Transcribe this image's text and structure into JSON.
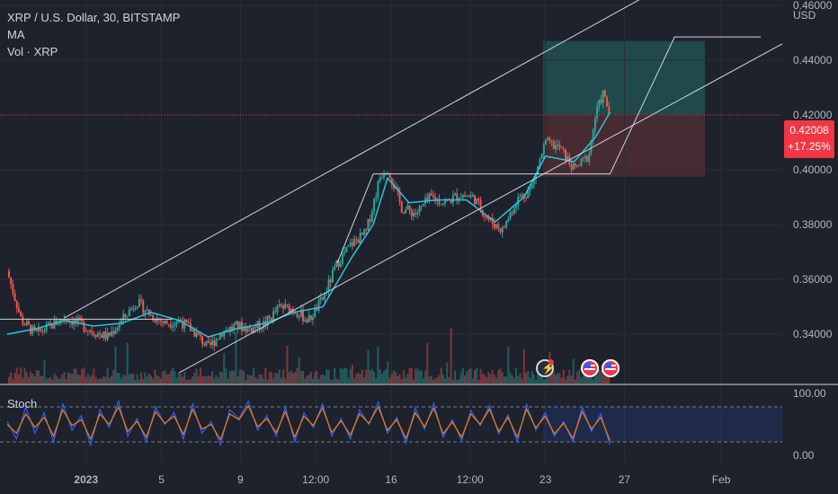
{
  "legend": {
    "symbol": "XRP / U.S. Dollar, 30, BITSTAMP",
    "ma": "MA",
    "volume": "Vol · XRP"
  },
  "currency": "USD",
  "price_tag": {
    "price": "0.42008",
    "change": "+17.25%"
  },
  "stoch": {
    "label": "Stoch",
    "upper": "100.00",
    "lower": "0.00"
  },
  "colors": {
    "background": "#1e222d",
    "price_line": "#f23645",
    "ma_line": "#26c6da",
    "up_candle": "#26a69a",
    "down_candle": "#ef5350",
    "stoch_k": "#2962ff",
    "stoch_d": "#f57c00",
    "profit_zone": "#1f4e4e",
    "loss_zone": "#4a2c33"
  },
  "chart_data": {
    "type": "line",
    "title": "XRP / U.S. Dollar, 30, BITSTAMP",
    "ylabel": "USD",
    "ylim": [
      0.322,
      0.462
    ],
    "y_ticks": [
      0.34,
      0.36,
      0.38,
      0.4,
      0.42,
      0.44,
      0.46
    ],
    "y_tick_labels": [
      "0.34000",
      "0.36000",
      "0.38000",
      "0.40000",
      "0.42000",
      "0.44000",
      "0.46000"
    ],
    "x_tick_labels": [
      "2023",
      "5",
      "9",
      "12:00",
      "16",
      "12:00",
      "23",
      "27",
      "Feb"
    ],
    "last_price": 0.42008,
    "change_percent": "+17.25%",
    "price_path": [
      {
        "t": 0,
        "p": 0.363
      },
      {
        "t": 4,
        "p": 0.345
      },
      {
        "t": 8,
        "p": 0.34
      },
      {
        "t": 12,
        "p": 0.343
      },
      {
        "t": 16,
        "p": 0.346
      },
      {
        "t": 20,
        "p": 0.344
      },
      {
        "t": 24,
        "p": 0.341
      },
      {
        "t": 28,
        "p": 0.339
      },
      {
        "t": 32,
        "p": 0.345
      },
      {
        "t": 36,
        "p": 0.352
      },
      {
        "t": 40,
        "p": 0.347
      },
      {
        "t": 44,
        "p": 0.344
      },
      {
        "t": 48,
        "p": 0.345
      },
      {
        "t": 52,
        "p": 0.341
      },
      {
        "t": 56,
        "p": 0.335
      },
      {
        "t": 60,
        "p": 0.341
      },
      {
        "t": 64,
        "p": 0.343
      },
      {
        "t": 68,
        "p": 0.342
      },
      {
        "t": 72,
        "p": 0.344
      },
      {
        "t": 76,
        "p": 0.35
      },
      {
        "t": 80,
        "p": 0.349
      },
      {
        "t": 84,
        "p": 0.345
      },
      {
        "t": 88,
        "p": 0.353
      },
      {
        "t": 92,
        "p": 0.366
      },
      {
        "t": 96,
        "p": 0.373
      },
      {
        "t": 100,
        "p": 0.377
      },
      {
        "t": 104,
        "p": 0.398
      },
      {
        "t": 106,
        "p": 0.401
      },
      {
        "t": 110,
        "p": 0.386
      },
      {
        "t": 114,
        "p": 0.384
      },
      {
        "t": 118,
        "p": 0.39
      },
      {
        "t": 122,
        "p": 0.388
      },
      {
        "t": 126,
        "p": 0.391
      },
      {
        "t": 130,
        "p": 0.39
      },
      {
        "t": 134,
        "p": 0.382
      },
      {
        "t": 138,
        "p": 0.378
      },
      {
        "t": 142,
        "p": 0.389
      },
      {
        "t": 146,
        "p": 0.393
      },
      {
        "t": 150,
        "p": 0.41
      },
      {
        "t": 154,
        "p": 0.408
      },
      {
        "t": 158,
        "p": 0.4
      },
      {
        "t": 162,
        "p": 0.405
      },
      {
        "t": 164,
        "p": 0.42
      },
      {
        "t": 166,
        "p": 0.428
      },
      {
        "t": 168,
        "p": 0.42
      }
    ],
    "ma_path": [
      {
        "t": 0,
        "p": 0.34
      },
      {
        "t": 8,
        "p": 0.342
      },
      {
        "t": 16,
        "p": 0.345
      },
      {
        "t": 24,
        "p": 0.343
      },
      {
        "t": 32,
        "p": 0.344
      },
      {
        "t": 40,
        "p": 0.348
      },
      {
        "t": 48,
        "p": 0.345
      },
      {
        "t": 56,
        "p": 0.339
      },
      {
        "t": 64,
        "p": 0.342
      },
      {
        "t": 72,
        "p": 0.344
      },
      {
        "t": 80,
        "p": 0.348
      },
      {
        "t": 88,
        "p": 0.35
      },
      {
        "t": 96,
        "p": 0.368
      },
      {
        "t": 102,
        "p": 0.38
      },
      {
        "t": 106,
        "p": 0.397
      },
      {
        "t": 112,
        "p": 0.388
      },
      {
        "t": 120,
        "p": 0.389
      },
      {
        "t": 128,
        "p": 0.389
      },
      {
        "t": 136,
        "p": 0.381
      },
      {
        "t": 144,
        "p": 0.39
      },
      {
        "t": 150,
        "p": 0.405
      },
      {
        "t": 158,
        "p": 0.403
      },
      {
        "t": 164,
        "p": 0.412
      },
      {
        "t": 168,
        "p": 0.421
      }
    ],
    "channel_upper": [
      {
        "t": 16,
        "p": 0.346
      },
      {
        "t": 216,
        "p": 0.491
      }
    ],
    "channel_lower": [
      {
        "t": 48,
        "p": 0.326
      },
      {
        "t": 216,
        "p": 0.446
      }
    ],
    "horizontal_levels": [
      0.3455,
      0.3985
    ],
    "projection_path": [
      {
        "t": 102,
        "p": 0.3985
      },
      {
        "t": 168,
        "p": 0.3985
      },
      {
        "t": 186,
        "p": 0.4485
      },
      {
        "t": 210,
        "p": 0.4485
      }
    ],
    "position": {
      "target": 0.447,
      "entry": 0.42008,
      "stop": 0.3975
    },
    "stoch_ylim": [
      0,
      100
    ],
    "stoch_k": [
      55,
      25,
      80,
      35,
      70,
      20,
      85,
      40,
      65,
      15,
      75,
      45,
      90,
      30,
      60,
      20,
      80,
      50,
      70,
      25,
      85,
      35,
      55,
      15,
      75,
      60,
      90,
      40,
      65,
      30,
      80,
      20,
      70,
      45,
      85,
      30,
      60,
      25,
      75,
      50,
      88,
      35,
      62,
      18,
      78,
      42,
      86,
      28,
      58,
      22,
      74,
      48,
      82,
      34,
      66,
      20,
      84,
      40,
      70,
      30,
      55,
      20,
      80,
      38,
      68,
      15
    ],
    "stoch_d": [
      50,
      35,
      68,
      45,
      62,
      30,
      75,
      48,
      58,
      25,
      68,
      50,
      80,
      38,
      55,
      28,
      72,
      52,
      64,
      33,
      76,
      42,
      50,
      24,
      68,
      58,
      82,
      46,
      60,
      36,
      72,
      28,
      64,
      48,
      78,
      36,
      56,
      32,
      68,
      52,
      80,
      40,
      58,
      26,
      70,
      46,
      78,
      34,
      54,
      28,
      68,
      50,
      76,
      38,
      62,
      28,
      76,
      44,
      64,
      34,
      52,
      26,
      72,
      42,
      62,
      22
    ]
  }
}
